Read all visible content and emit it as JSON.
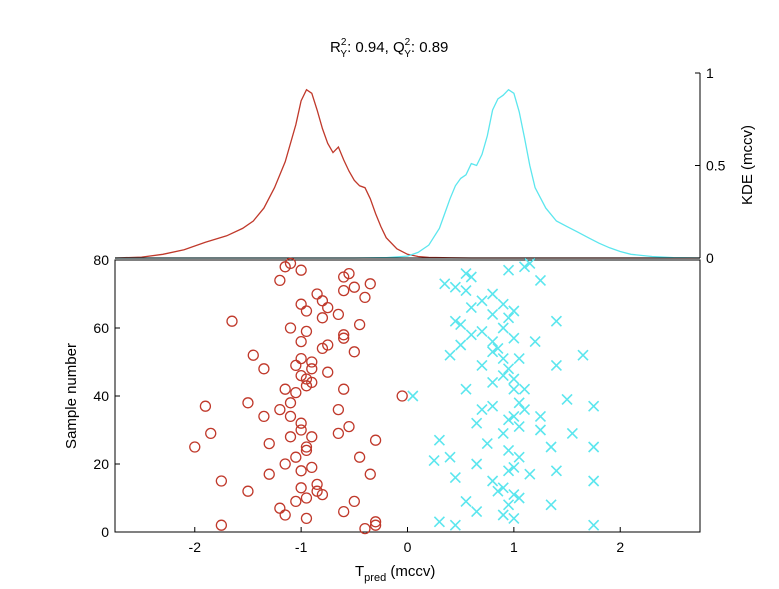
{
  "chart_data": [
    {
      "type": "line",
      "panel": "kde-top",
      "title_parts": {
        "r": "R",
        "r_sup": "2",
        "r_sub": "Y",
        "r_value": ": 0.94, ",
        "q": "Q",
        "q_sup": "2",
        "q_sub": "Y",
        "q_value": ": 0.89"
      },
      "ylabel": "KDE (mccv)",
      "y_axis_side": "right",
      "xlim": [
        -2.75,
        2.75
      ],
      "ylim": [
        0,
        1
      ],
      "yticks": [
        0,
        0.5,
        1
      ],
      "ytick_labels": [
        "0",
        "0.5",
        "1"
      ],
      "series": [
        {
          "color": "#c0392b",
          "x": [
            -2.75,
            -2.5,
            -2.3,
            -2.1,
            -1.9,
            -1.7,
            -1.55,
            -1.45,
            -1.35,
            -1.25,
            -1.15,
            -1.05,
            -1.0,
            -0.95,
            -0.9,
            -0.85,
            -0.8,
            -0.75,
            -0.7,
            -0.65,
            -0.6,
            -0.55,
            -0.5,
            -0.45,
            -0.4,
            -0.35,
            -0.3,
            -0.25,
            -0.2,
            -0.1,
            0.0,
            0.1,
            0.2,
            0.4,
            0.6,
            0.8,
            1.0,
            1.5,
            2.0,
            2.75
          ],
          "y": [
            0,
            0.005,
            0.02,
            0.045,
            0.085,
            0.12,
            0.16,
            0.2,
            0.27,
            0.38,
            0.52,
            0.72,
            0.85,
            0.91,
            0.89,
            0.8,
            0.7,
            0.62,
            0.57,
            0.6,
            0.53,
            0.47,
            0.42,
            0.39,
            0.38,
            0.32,
            0.24,
            0.17,
            0.11,
            0.05,
            0.02,
            0.008,
            0.003,
            0.001,
            0,
            0,
            0,
            0,
            0,
            0
          ]
        },
        {
          "color": "#5ce6ee",
          "x": [
            -2.75,
            -1.5,
            -1.0,
            -0.5,
            -0.2,
            0.0,
            0.1,
            0.2,
            0.3,
            0.35,
            0.4,
            0.45,
            0.5,
            0.55,
            0.6,
            0.65,
            0.7,
            0.75,
            0.8,
            0.85,
            0.9,
            0.95,
            1.0,
            1.05,
            1.1,
            1.15,
            1.2,
            1.3,
            1.4,
            1.5,
            1.6,
            1.7,
            1.8,
            1.9,
            2.0,
            2.1,
            2.3,
            2.5,
            2.75
          ],
          "y": [
            0,
            0,
            0,
            0,
            0.002,
            0.01,
            0.03,
            0.07,
            0.16,
            0.24,
            0.32,
            0.39,
            0.43,
            0.45,
            0.51,
            0.5,
            0.56,
            0.66,
            0.8,
            0.86,
            0.88,
            0.91,
            0.89,
            0.79,
            0.65,
            0.5,
            0.38,
            0.27,
            0.2,
            0.17,
            0.14,
            0.11,
            0.08,
            0.055,
            0.035,
            0.02,
            0.008,
            0.002,
            0
          ]
        }
      ]
    },
    {
      "type": "scatter",
      "panel": "scatter-bottom",
      "xlabel_main": "T",
      "xlabel_sub": "pred",
      "xlabel_unit": " (mccv)",
      "ylabel": "Sample number",
      "xlim": [
        -2.75,
        2.75
      ],
      "ylim": [
        0,
        80
      ],
      "xticks": [
        -2,
        -1,
        0,
        1,
        2
      ],
      "xtick_labels": [
        "-2",
        "-1",
        "0",
        "1",
        "2"
      ],
      "yticks": [
        0,
        20,
        40,
        60,
        80
      ],
      "ytick_labels": [
        "0",
        "20",
        "40",
        "60",
        "80"
      ],
      "series": [
        {
          "marker": "circle",
          "color": "#c0392b",
          "points": [
            [
              -1.1,
              79
            ],
            [
              -1.15,
              78
            ],
            [
              -1.0,
              77
            ],
            [
              -0.6,
              75
            ],
            [
              -1.2,
              74
            ],
            [
              -0.55,
              76
            ],
            [
              -0.35,
              73
            ],
            [
              -0.5,
              72
            ],
            [
              -0.6,
              71
            ],
            [
              -0.85,
              70
            ],
            [
              -0.4,
              69
            ],
            [
              -0.8,
              68
            ],
            [
              -0.75,
              66
            ],
            [
              -1.0,
              67
            ],
            [
              -0.95,
              65
            ],
            [
              -0.65,
              64
            ],
            [
              -0.8,
              63
            ],
            [
              -1.65,
              62
            ],
            [
              -1.1,
              60
            ],
            [
              -0.45,
              61
            ],
            [
              -0.95,
              59
            ],
            [
              -0.6,
              58
            ],
            [
              -0.6,
              57
            ],
            [
              -1.0,
              56
            ],
            [
              -0.75,
              55
            ],
            [
              -0.8,
              54
            ],
            [
              -0.5,
              53
            ],
            [
              -1.45,
              52
            ],
            [
              -1.0,
              51
            ],
            [
              -0.9,
              50
            ],
            [
              -1.05,
              49
            ],
            [
              -1.35,
              48
            ],
            [
              -0.9,
              48
            ],
            [
              -0.75,
              47
            ],
            [
              -1.0,
              46
            ],
            [
              -0.95,
              45
            ],
            [
              -0.9,
              44
            ],
            [
              -0.95,
              43
            ],
            [
              -1.15,
              42
            ],
            [
              -0.6,
              42
            ],
            [
              -1.05,
              41
            ],
            [
              -1.9,
              37
            ],
            [
              -1.5,
              38
            ],
            [
              -1.1,
              38
            ],
            [
              -0.05,
              40
            ],
            [
              -1.2,
              36
            ],
            [
              -0.65,
              36
            ],
            [
              -1.1,
              34
            ],
            [
              -1.35,
              34
            ],
            [
              -1.0,
              32
            ],
            [
              -1.0,
              30
            ],
            [
              -0.55,
              31
            ],
            [
              -1.85,
              29
            ],
            [
              -1.1,
              28
            ],
            [
              -0.9,
              28
            ],
            [
              -0.65,
              29
            ],
            [
              -0.3,
              27
            ],
            [
              -1.3,
              26
            ],
            [
              -0.95,
              25
            ],
            [
              -2.0,
              25
            ],
            [
              -0.95,
              24
            ],
            [
              -1.05,
              22
            ],
            [
              -0.45,
              22
            ],
            [
              -1.15,
              20
            ],
            [
              -0.9,
              19
            ],
            [
              -1.0,
              18
            ],
            [
              -1.3,
              17
            ],
            [
              -0.35,
              17
            ],
            [
              -1.75,
              15
            ],
            [
              -0.85,
              14
            ],
            [
              -1.0,
              13
            ],
            [
              -0.85,
              12
            ],
            [
              -1.5,
              12
            ],
            [
              -0.8,
              11
            ],
            [
              -0.95,
              10
            ],
            [
              -1.05,
              9
            ],
            [
              -0.5,
              9
            ],
            [
              -0.6,
              6
            ],
            [
              -1.15,
              5
            ],
            [
              -0.95,
              4
            ],
            [
              -1.2,
              7
            ],
            [
              -0.3,
              3
            ],
            [
              -0.3,
              2
            ],
            [
              -1.75,
              2
            ],
            [
              -0.4,
              1
            ]
          ]
        },
        {
          "marker": "x",
          "color": "#5ce6ee",
          "points": [
            [
              1.15,
              79
            ],
            [
              1.1,
              78
            ],
            [
              0.55,
              76
            ],
            [
              0.95,
              77
            ],
            [
              0.6,
              75
            ],
            [
              1.25,
              74
            ],
            [
              0.35,
              73
            ],
            [
              0.45,
              72
            ],
            [
              0.55,
              71
            ],
            [
              0.8,
              70
            ],
            [
              0.7,
              68
            ],
            [
              0.9,
              67
            ],
            [
              0.6,
              66
            ],
            [
              1.0,
              65
            ],
            [
              0.8,
              64
            ],
            [
              0.95,
              63
            ],
            [
              0.45,
              62
            ],
            [
              1.4,
              62
            ],
            [
              0.5,
              61
            ],
            [
              0.9,
              60
            ],
            [
              0.7,
              59
            ],
            [
              0.6,
              58
            ],
            [
              1.0,
              57
            ],
            [
              0.8,
              56
            ],
            [
              1.2,
              56
            ],
            [
              0.5,
              55
            ],
            [
              0.85,
              54
            ],
            [
              0.8,
              53
            ],
            [
              1.65,
              52
            ],
            [
              0.4,
              52
            ],
            [
              0.9,
              51
            ],
            [
              1.05,
              51
            ],
            [
              0.7,
              49
            ],
            [
              0.95,
              48
            ],
            [
              1.4,
              49
            ],
            [
              0.9,
              46
            ],
            [
              0.8,
              44
            ],
            [
              1.0,
              45
            ],
            [
              0.55,
              42
            ],
            [
              1.0,
              42
            ],
            [
              1.1,
              42
            ],
            [
              0.05,
              40
            ],
            [
              1.5,
              39
            ],
            [
              1.05,
              38
            ],
            [
              0.8,
              37
            ],
            [
              1.75,
              37
            ],
            [
              0.7,
              36
            ],
            [
              1.1,
              36
            ],
            [
              1.0,
              34
            ],
            [
              1.25,
              34
            ],
            [
              0.95,
              33
            ],
            [
              0.65,
              32
            ],
            [
              1.05,
              31
            ],
            [
              1.25,
              30
            ],
            [
              0.9,
              29
            ],
            [
              1.55,
              29
            ],
            [
              0.3,
              27
            ],
            [
              0.75,
              26
            ],
            [
              1.35,
              25
            ],
            [
              1.75,
              25
            ],
            [
              0.95,
              24
            ],
            [
              0.4,
              22
            ],
            [
              0.25,
              21
            ],
            [
              1.05,
              22
            ],
            [
              0.65,
              20
            ],
            [
              1.0,
              19
            ],
            [
              0.95,
              18
            ],
            [
              1.4,
              18
            ],
            [
              1.15,
              17
            ],
            [
              0.45,
              16
            ],
            [
              0.8,
              15
            ],
            [
              1.75,
              15
            ],
            [
              0.9,
              13
            ],
            [
              0.85,
              12
            ],
            [
              1.0,
              11
            ],
            [
              1.05,
              10
            ],
            [
              0.55,
              9
            ],
            [
              0.95,
              8
            ],
            [
              1.35,
              8
            ],
            [
              0.65,
              6
            ],
            [
              0.9,
              5
            ],
            [
              1.0,
              4
            ],
            [
              0.3,
              3
            ],
            [
              1.75,
              2
            ],
            [
              0.45,
              2
            ]
          ]
        }
      ]
    }
  ]
}
